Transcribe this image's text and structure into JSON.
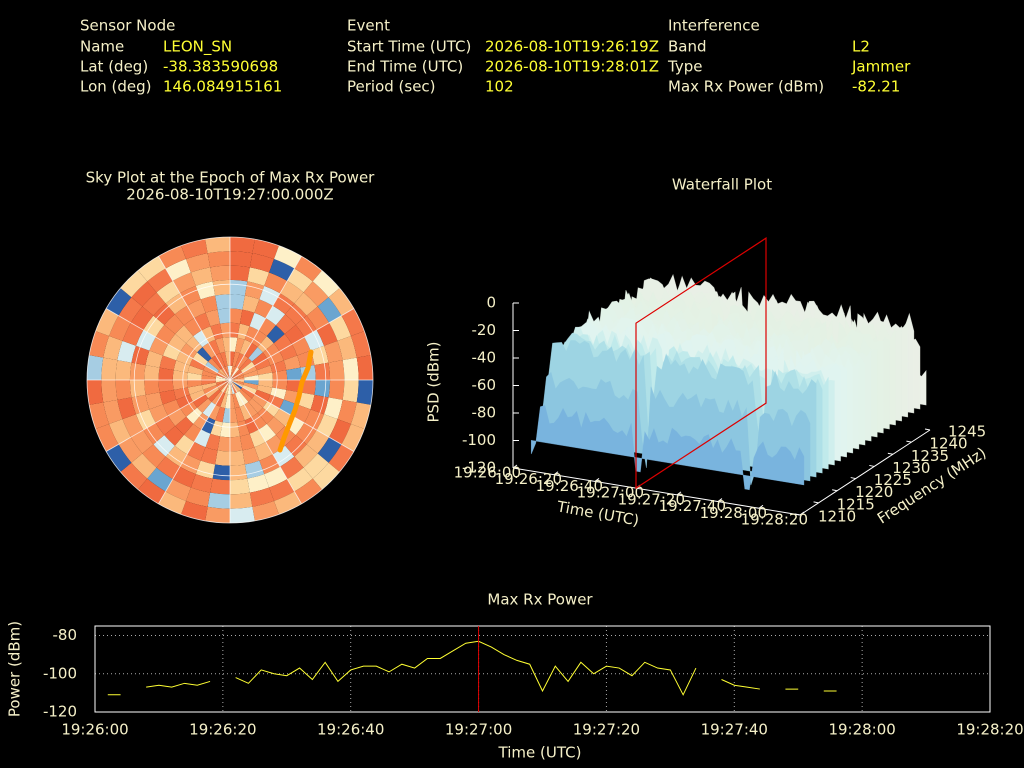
{
  "header": {
    "sensor_node": {
      "title": "Sensor Node",
      "rows": [
        [
          "Name",
          "LEON_SN"
        ],
        [
          "Lat (deg)",
          -38.383590698
        ],
        [
          "Lon (deg)",
          146.084915161
        ]
      ]
    },
    "event": {
      "title": "Event",
      "rows": [
        [
          "Start Time (UTC)",
          "2026-08-10T19:26:19Z"
        ],
        [
          "End Time (UTC)",
          "2026-08-10T19:28:01Z"
        ],
        [
          "Period (sec)",
          102
        ]
      ]
    },
    "interference": {
      "title": "Interference",
      "rows": [
        [
          "Band",
          "L2"
        ],
        [
          "Type",
          "Jammer"
        ],
        [
          "Max Rx Power (dBm)",
          -82.21
        ]
      ]
    }
  },
  "chart_data": [
    {
      "type": "polar_heatmap",
      "title": "Sky Plot at the Epoch of Max Rx Power",
      "subtitle": "2026-08-10T19:27:00.000Z"
    },
    {
      "type": "waterfall",
      "title": "Waterfall Plot",
      "zlabel": "PSD (dBm)",
      "zlim": [
        -120,
        0
      ],
      "zticks": [
        0,
        -20,
        -40,
        -60,
        -80,
        -100,
        -120
      ],
      "xlabel": "Time (UTC)",
      "xticks": [
        "19:26:00",
        "19:26:20",
        "19:26:40",
        "19:27:00",
        "19:27:20",
        "19:27:40",
        "19:28:00",
        "19:28:20"
      ],
      "ylabel": "Frequency (MHz)",
      "yticks": [
        1210,
        1215,
        1220,
        1225,
        1230,
        1235,
        1240,
        1245
      ],
      "epoch": "19:27:00",
      "plane_color": "#dd0000"
    },
    {
      "type": "line",
      "title": "Max Rx Power",
      "xlabel": "Time (UTC)",
      "ylabel": "Power (dBm)",
      "xlim": [
        "19:26:00",
        "19:28:20"
      ],
      "xticks": [
        "19:26:00",
        "19:26:20",
        "19:26:40",
        "19:27:00",
        "19:27:20",
        "19:27:40",
        "19:28:00",
        "19:28:20"
      ],
      "ylim": [
        -120,
        -75
      ],
      "yticks": [
        -80,
        -100,
        -120
      ],
      "grid": true,
      "epoch": "19:27:00",
      "epoch_color": "#dd0000",
      "x": [
        "19:26:02",
        "19:26:04",
        "19:26:06",
        "19:26:08",
        "19:26:10",
        "19:26:12",
        "19:26:14",
        "19:26:16",
        "19:26:18",
        "19:26:20",
        "19:26:22",
        "19:26:24",
        "19:26:26",
        "19:26:28",
        "19:26:30",
        "19:26:32",
        "19:26:34",
        "19:26:36",
        "19:26:38",
        "19:26:40",
        "19:26:42",
        "19:26:44",
        "19:26:46",
        "19:26:48",
        "19:26:50",
        "19:26:52",
        "19:26:54",
        "19:26:56",
        "19:26:58",
        "19:27:00",
        "19:27:02",
        "19:27:04",
        "19:27:06",
        "19:27:08",
        "19:27:10",
        "19:27:12",
        "19:27:14",
        "19:27:16",
        "19:27:18",
        "19:27:20",
        "19:27:22",
        "19:27:24",
        "19:27:26",
        "19:27:28",
        "19:27:30",
        "19:27:32",
        "19:27:34",
        "19:27:36",
        "19:27:38",
        "19:27:40",
        "19:27:42",
        "19:27:44",
        "19:27:46",
        "19:27:48",
        "19:27:50",
        "19:27:52",
        "19:27:54",
        "19:27:56"
      ],
      "series": [
        {
          "name": "Max Rx Power",
          "color": "#ffff33",
          "values": [
            -111,
            -111,
            null,
            -107,
            -106,
            -107,
            -105,
            -106,
            -104,
            null,
            -102,
            -105,
            -98,
            -100,
            -101,
            -97,
            -103,
            -94,
            -104,
            -98,
            -96,
            -96,
            -99,
            -95,
            -97,
            -92,
            -92,
            -88,
            -84,
            -83,
            -86,
            -90,
            -93,
            -95,
            -109,
            -96,
            -104,
            -94,
            -100,
            -96,
            -97,
            -101,
            -94,
            -97,
            -98,
            -111,
            -97,
            null,
            -103,
            -106,
            -107,
            -108,
            null,
            -108,
            -108,
            null,
            -109,
            -109
          ]
        }
      ]
    }
  ]
}
